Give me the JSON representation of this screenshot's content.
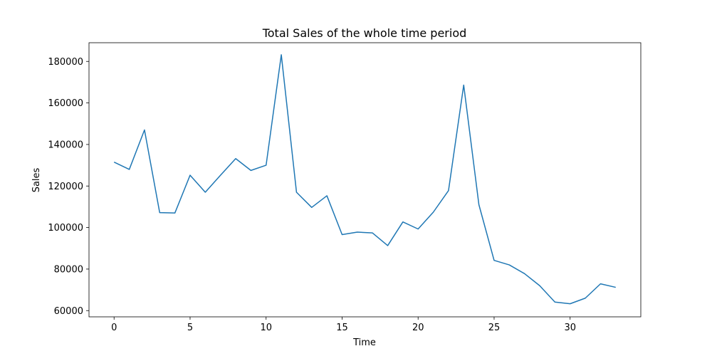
{
  "chart_data": {
    "type": "line",
    "title": "Total Sales of the whole time period",
    "xlabel": "Time",
    "ylabel": "Sales",
    "xlim": [
      -1.65,
      34.65
    ],
    "ylim": [
      57000,
      189000
    ],
    "xticks": [
      0,
      5,
      10,
      15,
      20,
      25,
      30
    ],
    "yticks": [
      60000,
      80000,
      100000,
      120000,
      140000,
      160000,
      180000
    ],
    "grid": false,
    "series": [
      {
        "color": "#1f77b4",
        "x": [
          0,
          1,
          2,
          3,
          4,
          5,
          6,
          7,
          8,
          9,
          10,
          11,
          12,
          13,
          14,
          15,
          16,
          17,
          18,
          19,
          20,
          21,
          22,
          23,
          24,
          25,
          26,
          27,
          28,
          29,
          30,
          31,
          32,
          33
        ],
        "values": [
          131500,
          128000,
          147000,
          107200,
          107000,
          125200,
          117000,
          125200,
          133200,
          127500,
          130000,
          183200,
          117000,
          109700,
          115300,
          96600,
          97800,
          97400,
          91300,
          102700,
          99300,
          107400,
          117800,
          168600,
          111000,
          84200,
          82000,
          77800,
          72000,
          64100,
          63300,
          66000,
          72900,
          71200
        ]
      }
    ]
  }
}
